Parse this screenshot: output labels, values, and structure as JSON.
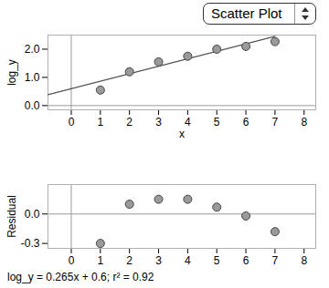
{
  "dropdown": "Scatter Plot",
  "caption": "log_y = 0.265x + 0.6; r² = 0.92",
  "chart_data": [
    {
      "type": "scatter",
      "x_label": "x",
      "y_label": "log_y",
      "x": [
        1,
        2,
        3,
        4,
        5,
        6,
        7
      ],
      "values": [
        0.55,
        1.2,
        1.55,
        1.75,
        2.0,
        2.1,
        2.27
      ],
      "fit": {
        "slope": 0.265,
        "intercept": 0.6
      },
      "color": "#9a9a9a",
      "marker": "circle",
      "xlim": [
        -0.8,
        8.4
      ],
      "xticks": [
        0,
        1,
        2,
        3,
        4,
        5,
        6,
        7,
        8
      ],
      "ylim": [
        -0.15,
        2.5
      ],
      "yticks": [
        {
          "value": 0,
          "label": "0.0"
        },
        {
          "value": 1,
          "label": "1.0"
        },
        {
          "value": 2,
          "label": "2.0"
        }
      ]
    },
    {
      "type": "scatter",
      "y_label": "Residual",
      "x": [
        1,
        2,
        3,
        4,
        5,
        6,
        7
      ],
      "values": [
        -0.3,
        0.1,
        0.15,
        0.15,
        0.07,
        -0.02,
        -0.18
      ],
      "color": "#9a9a9a",
      "marker": "circle",
      "xlim": [
        -0.8,
        8.4
      ],
      "xticks": [
        0,
        1,
        2,
        3,
        4,
        5,
        6,
        7,
        8
      ],
      "ylim": [
        -0.35,
        0.3
      ],
      "yticks": [
        {
          "value": -0.3,
          "label": "-0.3"
        },
        {
          "value": 0,
          "label": "0.0"
        }
      ]
    }
  ]
}
